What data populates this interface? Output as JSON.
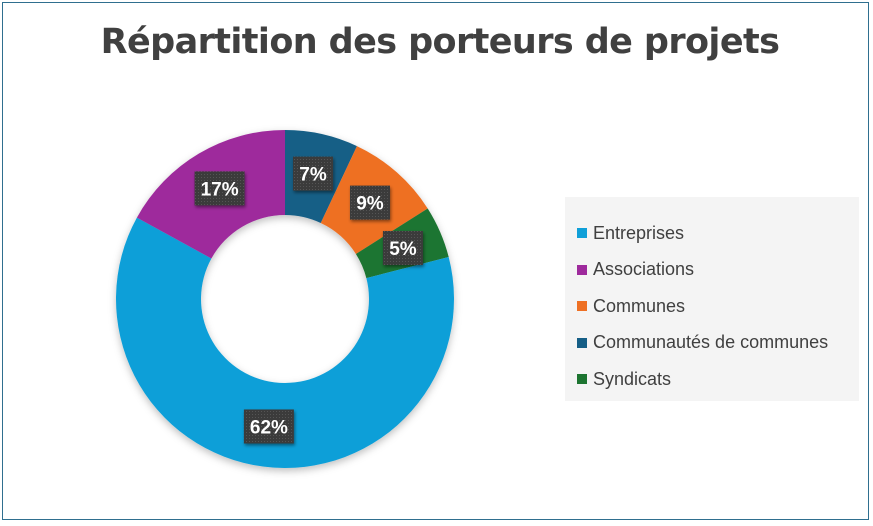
{
  "chart_data": {
    "type": "pie",
    "title": "Répartition des porteurs de projets",
    "categories": [
      "Entreprises",
      "Associations",
      "Communes",
      "Communautés de communes",
      "Syndicats"
    ],
    "values": [
      62,
      17,
      9,
      7,
      5
    ],
    "value_labels": [
      "62%",
      "17%",
      "9%",
      "7%",
      "5%"
    ],
    "colors": [
      "#0f9fd8",
      "#9e2a9c",
      "#ee7024",
      "#155e86",
      "#1c7430"
    ],
    "donut": true,
    "slice_order": [
      "Communautés de communes",
      "Communes",
      "Syndicats",
      "Entreprises",
      "Associations"
    ],
    "legend_position": "right"
  }
}
